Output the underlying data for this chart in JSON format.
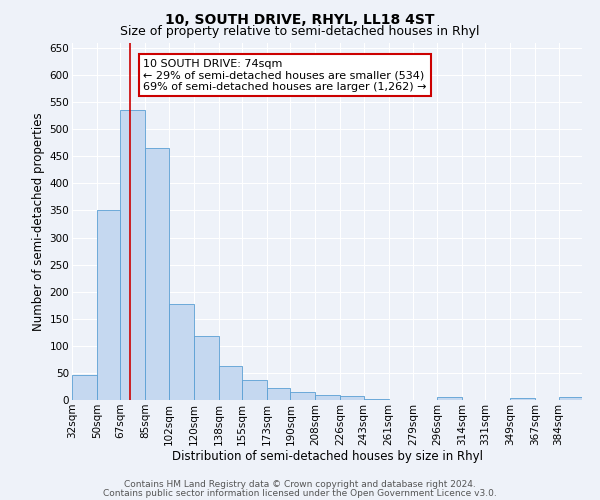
{
  "title": "10, SOUTH DRIVE, RHYL, LL18 4ST",
  "subtitle": "Size of property relative to semi-detached houses in Rhyl",
  "xlabel": "Distribution of semi-detached houses by size in Rhyl",
  "ylabel": "Number of semi-detached properties",
  "bin_labels": [
    "32sqm",
    "50sqm",
    "67sqm",
    "85sqm",
    "102sqm",
    "120sqm",
    "138sqm",
    "155sqm",
    "173sqm",
    "190sqm",
    "208sqm",
    "226sqm",
    "243sqm",
    "261sqm",
    "279sqm",
    "296sqm",
    "314sqm",
    "331sqm",
    "349sqm",
    "367sqm",
    "384sqm"
  ],
  "bin_edges": [
    32,
    50,
    67,
    85,
    102,
    120,
    138,
    155,
    173,
    190,
    208,
    226,
    243,
    261,
    279,
    296,
    314,
    331,
    349,
    367,
    384
  ],
  "bar_heights": [
    47,
    350,
    535,
    465,
    178,
    118,
    62,
    37,
    22,
    15,
    10,
    8,
    1,
    0,
    0,
    5,
    0,
    0,
    3,
    0,
    5
  ],
  "bar_color": "#c5d8f0",
  "bar_edge_color": "#5a9fd4",
  "property_size": 74,
  "ylim": [
    0,
    660
  ],
  "yticks": [
    0,
    50,
    100,
    150,
    200,
    250,
    300,
    350,
    400,
    450,
    500,
    550,
    600,
    650
  ],
  "vline_color": "#cc0000",
  "annotation_title": "10 SOUTH DRIVE: 74sqm",
  "annotation_line1": "← 29% of semi-detached houses are smaller (534)",
  "annotation_line2": "69% of semi-detached houses are larger (1,262) →",
  "annotation_box_color": "#ffffff",
  "annotation_box_edge": "#cc0000",
  "footer1": "Contains HM Land Registry data © Crown copyright and database right 2024.",
  "footer2": "Contains public sector information licensed under the Open Government Licence v3.0.",
  "bg_color": "#eef2f9",
  "grid_color": "#ffffff",
  "title_fontsize": 10,
  "subtitle_fontsize": 9,
  "axis_label_fontsize": 8.5,
  "tick_fontsize": 7.5,
  "annotation_fontsize": 8,
  "footer_fontsize": 6.5
}
